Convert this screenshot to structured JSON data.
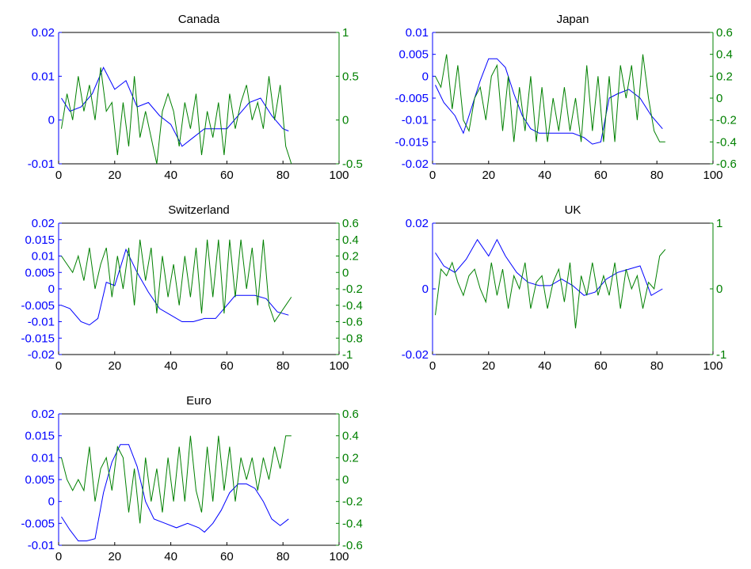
{
  "colors": {
    "left_series": "#0000ff",
    "right_series": "#008000",
    "axes": "#000000",
    "background": "#ffffff"
  },
  "chart_data": [
    {
      "type": "line",
      "title": "Canada",
      "xlim": [
        0,
        100
      ],
      "xticks": [
        0,
        20,
        40,
        60,
        80,
        100
      ],
      "y_left": {
        "lim": [
          -0.01,
          0.02
        ],
        "ticks": [
          -0.01,
          0,
          0.01,
          0.02
        ],
        "tick_labels": [
          "-0.01",
          "0",
          "0.01",
          "0.02"
        ]
      },
      "y_right": {
        "lim": [
          -0.5,
          1
        ],
        "ticks": [
          -0.5,
          0,
          0.5,
          1
        ],
        "tick_labels": [
          "-0.5",
          "0",
          "0.5",
          "1"
        ]
      },
      "series": [
        {
          "axis": "left",
          "color": "#0000ff",
          "x": [
            1,
            4,
            8,
            12,
            16,
            20,
            24,
            28,
            32,
            36,
            40,
            44,
            48,
            52,
            56,
            60,
            64,
            68,
            72,
            76,
            80,
            82
          ],
          "y": [
            0.005,
            0.002,
            0.003,
            0.006,
            0.012,
            0.007,
            0.009,
            0.003,
            0.004,
            0.001,
            -0.001,
            -0.006,
            -0.004,
            -0.002,
            -0.002,
            -0.002,
            0.001,
            0.004,
            0.005,
            0.001,
            -0.002,
            -0.0025
          ]
        },
        {
          "axis": "right",
          "color": "#008000",
          "x": [
            1,
            3,
            5,
            7,
            9,
            11,
            13,
            15,
            17,
            19,
            21,
            23,
            25,
            27,
            29,
            31,
            33,
            35,
            37,
            39,
            41,
            43,
            45,
            47,
            49,
            51,
            53,
            55,
            57,
            59,
            61,
            63,
            65,
            67,
            69,
            71,
            73,
            75,
            77,
            79,
            81,
            83
          ],
          "y": [
            -0.1,
            0.3,
            0.0,
            0.5,
            0.1,
            0.4,
            0.0,
            0.6,
            0.1,
            0.2,
            -0.4,
            0.2,
            -0.3,
            0.5,
            -0.2,
            0.1,
            -0.2,
            -0.5,
            0.1,
            0.3,
            0.1,
            -0.3,
            0.2,
            -0.1,
            0.3,
            -0.4,
            0.1,
            -0.2,
            0.2,
            -0.4,
            0.3,
            -0.1,
            0.2,
            0.4,
            0.0,
            0.2,
            -0.1,
            0.5,
            0.0,
            0.4,
            -0.3,
            -0.5
          ]
        }
      ]
    },
    {
      "type": "line",
      "title": "Japan",
      "xlim": [
        0,
        100
      ],
      "xticks": [
        0,
        20,
        40,
        60,
        80,
        100
      ],
      "y_left": {
        "lim": [
          -0.02,
          0.01
        ],
        "ticks": [
          -0.02,
          -0.015,
          -0.01,
          -0.005,
          0,
          0.005,
          0.01
        ],
        "tick_labels": [
          "-0.02",
          "-0.015",
          "-0.01",
          "-0.005",
          "0",
          "0.005",
          "0.01"
        ]
      },
      "y_right": {
        "lim": [
          -0.6,
          0.6
        ],
        "ticks": [
          -0.6,
          -0.4,
          -0.2,
          0,
          0.2,
          0.4,
          0.6
        ],
        "tick_labels": [
          "-0.6",
          "-0.4",
          "-0.2",
          "0",
          "0.2",
          "0.4",
          "0.6"
        ]
      },
      "series": [
        {
          "axis": "left",
          "color": "#0000ff",
          "x": [
            1,
            4,
            8,
            11,
            14,
            17,
            20,
            23,
            26,
            29,
            32,
            35,
            38,
            42,
            46,
            50,
            54,
            57,
            60,
            63,
            66,
            70,
            74,
            78,
            82
          ],
          "y": [
            -0.002,
            -0.006,
            -0.009,
            -0.013,
            -0.007,
            -0.001,
            0.004,
            0.004,
            0.002,
            -0.004,
            -0.009,
            -0.012,
            -0.013,
            -0.013,
            -0.013,
            -0.013,
            -0.014,
            -0.0155,
            -0.015,
            -0.005,
            -0.004,
            -0.003,
            -0.005,
            -0.009,
            -0.012
          ]
        },
        {
          "axis": "right",
          "color": "#008000",
          "x": [
            1,
            3,
            5,
            7,
            9,
            11,
            13,
            15,
            17,
            19,
            21,
            23,
            25,
            27,
            29,
            31,
            33,
            35,
            37,
            39,
            41,
            43,
            45,
            47,
            49,
            51,
            53,
            55,
            57,
            59,
            61,
            63,
            65,
            67,
            69,
            71,
            73,
            75,
            77,
            79,
            81,
            83
          ],
          "y": [
            0.2,
            0.1,
            0.4,
            -0.1,
            0.3,
            -0.2,
            -0.3,
            0.0,
            0.1,
            -0.2,
            0.2,
            0.3,
            -0.3,
            0.2,
            -0.4,
            0.1,
            -0.3,
            0.2,
            -0.4,
            0.1,
            -0.4,
            0.0,
            -0.3,
            0.1,
            -0.3,
            0.0,
            -0.4,
            0.3,
            -0.3,
            0.2,
            -0.4,
            0.2,
            -0.4,
            0.3,
            0.0,
            0.3,
            -0.2,
            0.4,
            0.0,
            -0.3,
            -0.4,
            -0.4
          ]
        }
      ]
    },
    {
      "type": "line",
      "title": "Switzerland",
      "xlim": [
        0,
        100
      ],
      "xticks": [
        0,
        20,
        40,
        60,
        80,
        100
      ],
      "y_left": {
        "lim": [
          -0.02,
          0.02
        ],
        "ticks": [
          -0.02,
          -0.015,
          -0.01,
          -0.005,
          0,
          0.005,
          0.01,
          0.015,
          0.02
        ],
        "tick_labels": [
          "-0.02",
          "-0.015",
          "-0.01",
          "-0.005",
          "0",
          "0.005",
          "0.01",
          "0.015",
          "0.02"
        ]
      },
      "y_right": {
        "lim": [
          -1,
          0.6
        ],
        "ticks": [
          -1,
          -0.8,
          -0.6,
          -0.4,
          -0.2,
          0,
          0.2,
          0.4,
          0.6
        ],
        "tick_labels": [
          "-1",
          "-0.8",
          "-0.6",
          "-0.4",
          "-0.2",
          "0",
          "0.2",
          "0.4",
          "0.6"
        ]
      },
      "series": [
        {
          "axis": "left",
          "color": "#0000ff",
          "x": [
            1,
            4,
            8,
            11,
            14,
            17,
            20,
            24,
            28,
            32,
            36,
            40,
            44,
            48,
            52,
            56,
            60,
            63,
            66,
            70,
            74,
            78,
            82
          ],
          "y": [
            -0.005,
            -0.006,
            -0.01,
            -0.011,
            -0.009,
            0.002,
            0.001,
            0.012,
            0.005,
            -0.001,
            -0.006,
            -0.008,
            -0.01,
            -0.01,
            -0.009,
            -0.009,
            -0.005,
            -0.002,
            -0.002,
            -0.002,
            -0.003,
            -0.007,
            -0.008
          ]
        },
        {
          "axis": "right",
          "color": "#008000",
          "x": [
            1,
            3,
            5,
            7,
            9,
            11,
            13,
            15,
            17,
            19,
            21,
            23,
            25,
            27,
            29,
            31,
            33,
            35,
            37,
            39,
            41,
            43,
            45,
            47,
            49,
            51,
            53,
            55,
            57,
            59,
            61,
            63,
            65,
            67,
            69,
            71,
            73,
            75,
            77,
            79,
            81,
            83
          ],
          "y": [
            0.2,
            0.1,
            0.0,
            0.2,
            -0.1,
            0.3,
            -0.2,
            0.1,
            0.3,
            -0.3,
            0.2,
            -0.2,
            0.3,
            -0.4,
            0.4,
            -0.1,
            0.3,
            -0.5,
            0.2,
            -0.3,
            0.1,
            -0.4,
            0.2,
            -0.3,
            0.3,
            -0.5,
            0.4,
            -0.3,
            0.4,
            -0.5,
            0.4,
            -0.3,
            0.4,
            -0.2,
            0.3,
            -0.4,
            0.4,
            -0.4,
            -0.6,
            -0.5,
            -0.4,
            -0.3
          ]
        }
      ]
    },
    {
      "type": "line",
      "title": "UK",
      "xlim": [
        0,
        100
      ],
      "xticks": [
        0,
        20,
        40,
        60,
        80,
        100
      ],
      "y_left": {
        "lim": [
          -0.02,
          0.02
        ],
        "ticks": [
          -0.02,
          0,
          0.02
        ],
        "tick_labels": [
          "-0.02",
          "0",
          "0.02"
        ]
      },
      "y_right": {
        "lim": [
          -1,
          1
        ],
        "ticks": [
          -1,
          0,
          1
        ],
        "tick_labels": [
          "-1",
          "0",
          "1"
        ]
      },
      "series": [
        {
          "axis": "left",
          "color": "#0000ff",
          "x": [
            1,
            4,
            8,
            12,
            16,
            20,
            23,
            26,
            30,
            34,
            38,
            42,
            46,
            50,
            54,
            58,
            62,
            66,
            70,
            74,
            78,
            82
          ],
          "y": [
            0.011,
            0.007,
            0.005,
            0.009,
            0.015,
            0.01,
            0.015,
            0.01,
            0.005,
            0.002,
            0.001,
            0.001,
            0.003,
            0.001,
            -0.002,
            -0.001,
            0.003,
            0.005,
            0.006,
            0.007,
            -0.002,
            0.0
          ]
        },
        {
          "axis": "right",
          "color": "#008000",
          "x": [
            1,
            3,
            5,
            7,
            9,
            11,
            13,
            15,
            17,
            19,
            21,
            23,
            25,
            27,
            29,
            31,
            33,
            35,
            37,
            39,
            41,
            43,
            45,
            47,
            49,
            51,
            53,
            55,
            57,
            59,
            61,
            63,
            65,
            67,
            69,
            71,
            73,
            75,
            77,
            79,
            81,
            83
          ],
          "y": [
            -0.4,
            0.3,
            0.2,
            0.4,
            0.1,
            -0.1,
            0.2,
            0.3,
            0.0,
            -0.2,
            0.4,
            -0.1,
            0.3,
            -0.3,
            0.2,
            0.0,
            0.4,
            -0.3,
            0.1,
            0.2,
            -0.3,
            0.1,
            0.3,
            -0.2,
            0.4,
            -0.6,
            0.2,
            -0.1,
            0.4,
            -0.1,
            0.2,
            -0.1,
            0.4,
            -0.3,
            0.3,
            0.0,
            0.2,
            -0.3,
            0.1,
            0.0,
            0.5,
            0.6
          ]
        }
      ]
    },
    {
      "type": "line",
      "title": "Euro",
      "xlim": [
        0,
        100
      ],
      "xticks": [
        0,
        20,
        40,
        60,
        80,
        100
      ],
      "y_left": {
        "lim": [
          -0.01,
          0.02
        ],
        "ticks": [
          -0.01,
          -0.005,
          0,
          0.005,
          0.01,
          0.015,
          0.02
        ],
        "tick_labels": [
          "-0.01",
          "-0.005",
          "0",
          "0.005",
          "0.01",
          "0.015",
          "0.02"
        ]
      },
      "y_right": {
        "lim": [
          -0.6,
          0.6
        ],
        "ticks": [
          -0.6,
          -0.4,
          -0.2,
          0,
          0.2,
          0.4,
          0.6
        ],
        "tick_labels": [
          "-0.6",
          "-0.4",
          "-0.2",
          "0",
          "0.2",
          "0.4",
          "0.6"
        ]
      },
      "series": [
        {
          "axis": "left",
          "color": "#0000ff",
          "x": [
            1,
            4,
            7,
            10,
            13,
            16,
            19,
            22,
            25,
            28,
            31,
            34,
            38,
            42,
            46,
            50,
            52,
            55,
            58,
            61,
            64,
            67,
            70,
            73,
            76,
            79,
            82
          ],
          "y": [
            -0.0035,
            -0.0065,
            -0.009,
            -0.009,
            -0.0085,
            0.002,
            0.009,
            0.013,
            0.013,
            0.008,
            0.0,
            -0.004,
            -0.005,
            -0.006,
            -0.005,
            -0.006,
            -0.007,
            -0.005,
            -0.002,
            0.002,
            0.004,
            0.004,
            0.003,
            0.0,
            -0.004,
            -0.0055,
            -0.004
          ]
        },
        {
          "axis": "right",
          "color": "#008000",
          "x": [
            1,
            3,
            5,
            7,
            9,
            11,
            13,
            15,
            17,
            19,
            21,
            23,
            25,
            27,
            29,
            31,
            33,
            35,
            37,
            39,
            41,
            43,
            45,
            47,
            49,
            51,
            53,
            55,
            57,
            59,
            61,
            63,
            65,
            67,
            69,
            71,
            73,
            75,
            77,
            79,
            81,
            83
          ],
          "y": [
            0.2,
            0.0,
            -0.1,
            0.0,
            -0.1,
            0.3,
            -0.2,
            0.1,
            0.2,
            -0.1,
            0.3,
            0.2,
            -0.3,
            0.1,
            -0.4,
            0.2,
            -0.2,
            0.1,
            -0.3,
            0.2,
            -0.2,
            0.3,
            -0.2,
            0.4,
            -0.1,
            -0.3,
            0.3,
            -0.2,
            0.4,
            -0.1,
            0.3,
            -0.2,
            0.2,
            0.0,
            0.2,
            -0.1,
            0.2,
            0.0,
            0.3,
            0.1,
            0.4,
            0.4
          ]
        }
      ]
    }
  ]
}
